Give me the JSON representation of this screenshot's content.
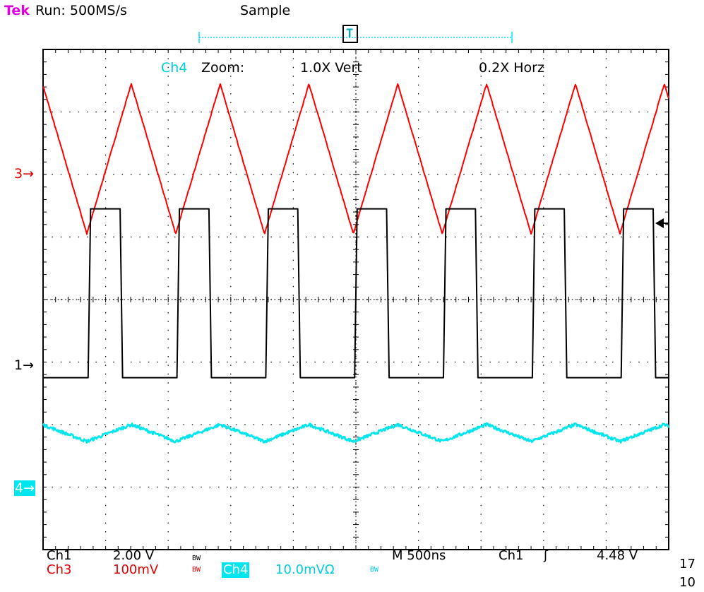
{
  "header": {
    "brand": "Tek",
    "status": "Run: 500MS/s",
    "mode": "Sample",
    "trigger_marker": "T"
  },
  "zoom": {
    "channel": "Ch4",
    "label": "Zoom:",
    "vert": "1.0X Vert",
    "horz": "0.2X Horz"
  },
  "channel_markers": {
    "ch3": "3→",
    "ch1": "1→",
    "ch4": "4→"
  },
  "footer": {
    "ch1_label": "Ch1",
    "ch1_scale": "2.00 V",
    "ch3_label": "Ch3",
    "ch3_scale": "100mV",
    "ch4_label": "Ch4",
    "ch4_scale": "10.0mVΩ",
    "bw": "BW",
    "timebase": "M 500ns",
    "trigger_source": "Ch1",
    "trigger_slope": "ʃ",
    "trigger_level": "4.48 V",
    "clip_top": "17",
    "clip_bottom": "10"
  },
  "colors": {
    "ch1": "#000000",
    "ch3": "#ff0000",
    "ch4": "#00e5ee",
    "brand": "#e000e0",
    "grid": "#000000"
  },
  "chart_data": {
    "type": "line",
    "title": "",
    "xlabel": "",
    "ylabel": "",
    "x_divisions": 10,
    "y_divisions": 8,
    "grid": true,
    "xlim": [
      0,
      10
    ],
    "ylim": [
      -4,
      4
    ],
    "series": [
      {
        "name": "Ch3",
        "color": "#ff0000",
        "shape": "triangle",
        "period_div": 1.42,
        "phase_div": 0.7,
        "max_div": 3.45,
        "min_div": 1.05
      },
      {
        "name": "Ch1",
        "color": "#000000",
        "shape": "square",
        "period_div": 1.42,
        "rise_div": 0.72,
        "duty": 0.36,
        "high_div": 1.45,
        "low_div": -1.25
      },
      {
        "name": "Ch4",
        "color": "#00e5ee",
        "shape": "triangle",
        "period_div": 1.42,
        "phase_div": 0.7,
        "max_div": -2.0,
        "min_div": -2.27
      }
    ]
  }
}
